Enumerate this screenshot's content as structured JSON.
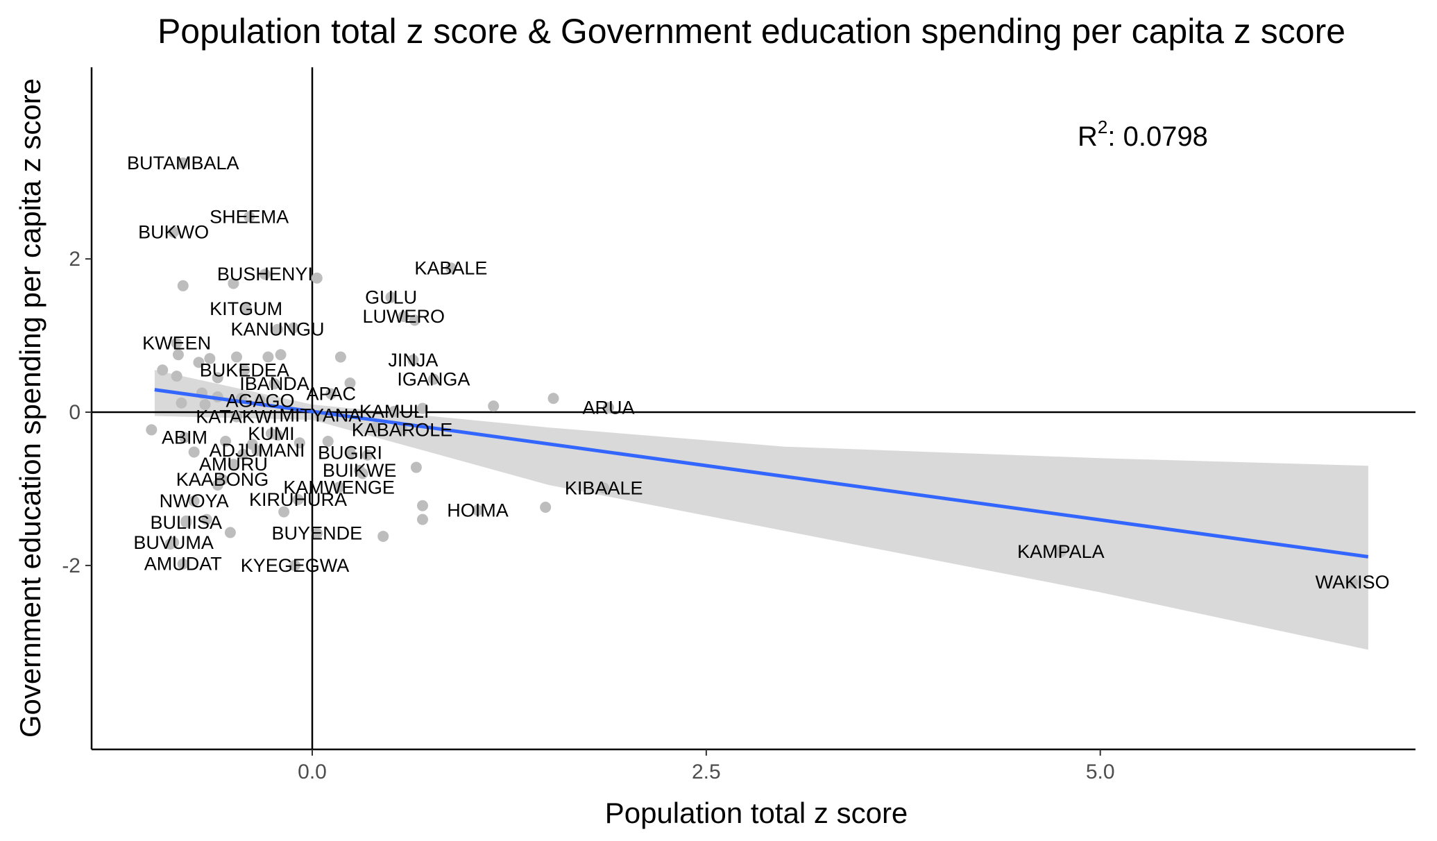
{
  "chart_data": {
    "type": "scatter",
    "title": "Population total z score & Government education spending per capita z score",
    "xlabel": "Population total z score",
    "ylabel": "Government education spending per capita z score",
    "xlim": [
      -1.4,
      7.0
    ],
    "ylim": [
      -4.4,
      4.5
    ],
    "x_ticks": [
      0.0,
      2.5,
      5.0
    ],
    "x_tick_labels": [
      "0.0",
      "2.5",
      "5.0"
    ],
    "y_ticks": [
      -2,
      0,
      2
    ],
    "y_tick_labels": [
      "-2",
      "0",
      "2"
    ],
    "r2_label": "R",
    "r2_exponent": "2",
    "r2_value": ": 0.0798",
    "reference_lines": {
      "x": 0,
      "y": 0
    },
    "fit": {
      "x_range": [
        -1.0,
        6.7
      ],
      "intercept": 0.01,
      "slope": -0.283,
      "ci_lower": [
        [
          -1.0,
          -0.05
        ],
        [
          0.0,
          -0.1
        ],
        [
          1.5,
          -0.95
        ],
        [
          3.0,
          -1.55
        ],
        [
          5.0,
          -2.35
        ],
        [
          6.7,
          -3.1
        ]
      ],
      "ci_upper": [
        [
          -1.0,
          0.55
        ],
        [
          0.0,
          0.1
        ],
        [
          1.5,
          -0.2
        ],
        [
          3.0,
          -0.45
        ],
        [
          5.0,
          -0.6
        ],
        [
          6.7,
          -0.7
        ]
      ]
    },
    "colors": {
      "points": "#bdbdbd",
      "fit_line": "#3366ff",
      "ci_band": "#d9d9d9",
      "axes": "#000000"
    },
    "labeled_points": [
      {
        "label": "BUTAMBALA",
        "x": -0.82,
        "y": 3.25
      },
      {
        "label": "SHEEMA",
        "x": -0.4,
        "y": 2.55
      },
      {
        "label": "BUKWO",
        "x": -0.88,
        "y": 2.35
      },
      {
        "label": "BUSHENYI",
        "x": -0.3,
        "y": 1.8
      },
      {
        "label": "KABALE",
        "x": 0.88,
        "y": 1.88
      },
      {
        "label": "GULU",
        "x": 0.5,
        "y": 1.5
      },
      {
        "label": "LUWERO",
        "x": 0.58,
        "y": 1.25
      },
      {
        "label": "KITGUM",
        "x": -0.42,
        "y": 1.35
      },
      {
        "label": "KANUNGU",
        "x": -0.22,
        "y": 1.08
      },
      {
        "label": "KWEEN",
        "x": -0.86,
        "y": 0.9
      },
      {
        "label": "JINJA",
        "x": 0.64,
        "y": 0.68
      },
      {
        "label": "IGANGA",
        "x": 0.77,
        "y": 0.43
      },
      {
        "label": "BUKEDEA",
        "x": -0.43,
        "y": 0.55
      },
      {
        "label": "IBANDA",
        "x": -0.24,
        "y": 0.37
      },
      {
        "label": "APAC",
        "x": 0.12,
        "y": 0.24
      },
      {
        "label": "AGAGO",
        "x": -0.33,
        "y": 0.15
      },
      {
        "label": "KAMULI",
        "x": 0.52,
        "y": 0.01
      },
      {
        "label": "ARUA",
        "x": 1.88,
        "y": 0.06
      },
      {
        "label": "KATAKWI",
        "x": -0.48,
        "y": -0.06
      },
      {
        "label": "MITYANA",
        "x": 0.05,
        "y": -0.04
      },
      {
        "label": "KABAROLE",
        "x": 0.57,
        "y": -0.23
      },
      {
        "label": "ABIM",
        "x": -0.81,
        "y": -0.33
      },
      {
        "label": "KUMI",
        "x": -0.26,
        "y": -0.28
      },
      {
        "label": "ADJUMANI",
        "x": -0.35,
        "y": -0.5
      },
      {
        "label": "BUGIRI",
        "x": 0.24,
        "y": -0.53
      },
      {
        "label": "AMURU",
        "x": -0.5,
        "y": -0.68
      },
      {
        "label": "BUIKWE",
        "x": 0.3,
        "y": -0.76
      },
      {
        "label": "KAABONG",
        "x": -0.57,
        "y": -0.88
      },
      {
        "label": "KAMWENGE",
        "x": 0.17,
        "y": -0.98
      },
      {
        "label": "KIBAALE",
        "x": 1.85,
        "y": -0.99
      },
      {
        "label": "NWOYA",
        "x": -0.75,
        "y": -1.16
      },
      {
        "label": "KIRUHURA",
        "x": -0.09,
        "y": -1.14
      },
      {
        "label": "HOIMA",
        "x": 1.05,
        "y": -1.28
      },
      {
        "label": "BULIISA",
        "x": -0.8,
        "y": -1.44
      },
      {
        "label": "BUYENDE",
        "x": 0.03,
        "y": -1.58
      },
      {
        "label": "BUVUMA",
        "x": -0.88,
        "y": -1.7
      },
      {
        "label": "KAMPALA",
        "x": 4.75,
        "y": -1.82
      },
      {
        "label": "AMUDAT",
        "x": -0.82,
        "y": -1.98
      },
      {
        "label": "KYEGEGWA",
        "x": -0.11,
        "y": -2.0
      },
      {
        "label": "WAKISO",
        "x": 6.6,
        "y": -2.22
      }
    ],
    "extra_points": [
      {
        "x": -0.82,
        "y": 1.65
      },
      {
        "x": -0.5,
        "y": 1.68
      },
      {
        "x": 0.03,
        "y": 1.75
      },
      {
        "x": 0.5,
        "y": 1.5
      },
      {
        "x": 0.65,
        "y": 1.2
      },
      {
        "x": -0.12,
        "y": 1.1
      },
      {
        "x": 0.18,
        "y": 0.72
      },
      {
        "x": -0.48,
        "y": 0.72
      },
      {
        "x": -0.2,
        "y": 0.75
      },
      {
        "x": -0.28,
        "y": 0.72
      },
      {
        "x": -0.65,
        "y": 0.7
      },
      {
        "x": -0.72,
        "y": 0.65
      },
      {
        "x": -0.85,
        "y": 0.75
      },
      {
        "x": -0.95,
        "y": 0.55
      },
      {
        "x": -0.86,
        "y": 0.47
      },
      {
        "x": -0.6,
        "y": 0.45
      },
      {
        "x": 0.24,
        "y": 0.38
      },
      {
        "x": -0.7,
        "y": 0.25
      },
      {
        "x": -0.6,
        "y": 0.2
      },
      {
        "x": -0.45,
        "y": 0.18
      },
      {
        "x": -0.83,
        "y": 0.12
      },
      {
        "x": -0.68,
        "y": 0.1
      },
      {
        "x": 0.7,
        "y": 0.05
      },
      {
        "x": 1.15,
        "y": 0.08
      },
      {
        "x": 1.53,
        "y": 0.18
      },
      {
        "x": 0.4,
        "y": -0.2
      },
      {
        "x": -1.02,
        "y": -0.23
      },
      {
        "x": -0.22,
        "y": -0.3
      },
      {
        "x": -0.38,
        "y": -0.42
      },
      {
        "x": -0.08,
        "y": -0.4
      },
      {
        "x": -0.55,
        "y": -0.38
      },
      {
        "x": 0.1,
        "y": -0.38
      },
      {
        "x": -0.75,
        "y": -0.52
      },
      {
        "x": -0.44,
        "y": -0.55
      },
      {
        "x": 0.35,
        "y": -0.56
      },
      {
        "x": 0.66,
        "y": -0.72
      },
      {
        "x": 0.32,
        "y": -0.8
      },
      {
        "x": -0.6,
        "y": -0.95
      },
      {
        "x": 0.7,
        "y": -1.22
      },
      {
        "x": 1.48,
        "y": -1.24
      },
      {
        "x": -0.18,
        "y": -1.3
      },
      {
        "x": 0.7,
        "y": -1.4
      },
      {
        "x": -0.8,
        "y": -1.42
      },
      {
        "x": -0.67,
        "y": -1.4
      },
      {
        "x": -0.52,
        "y": -1.57
      },
      {
        "x": 0.45,
        "y": -1.62
      },
      {
        "x": -0.9,
        "y": -1.72
      }
    ]
  }
}
